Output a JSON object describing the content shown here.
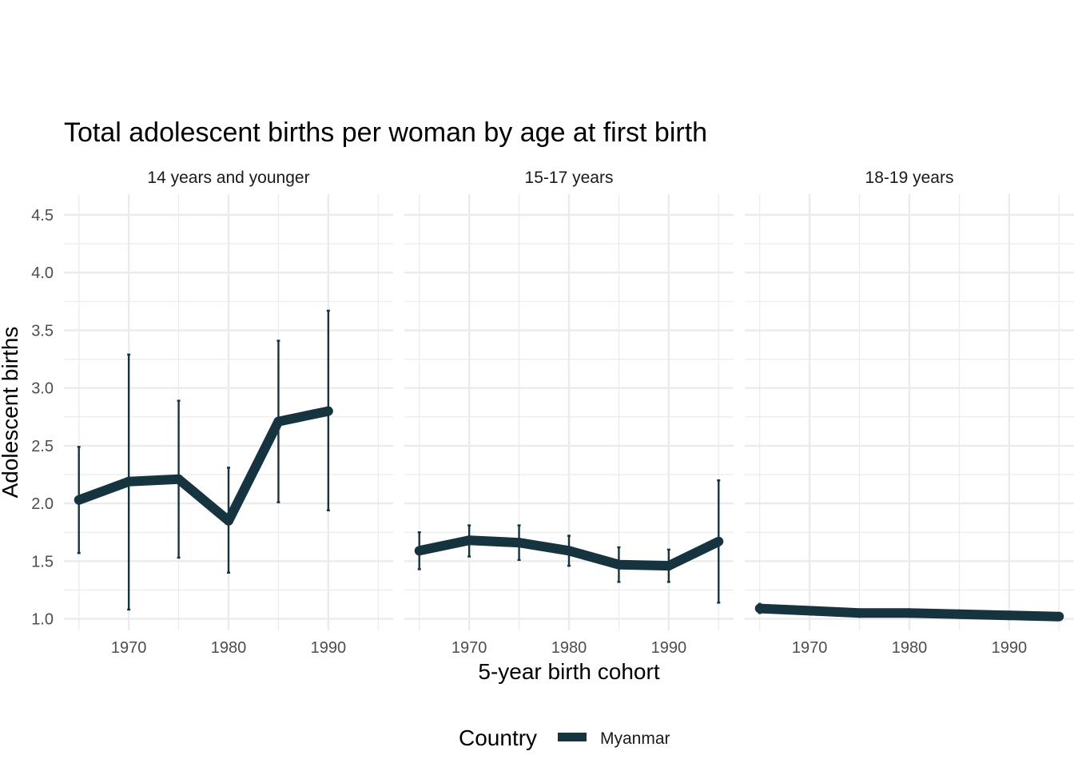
{
  "chart_data": {
    "type": "line",
    "title": "Total adolescent births per woman by age at first birth",
    "xlabel": "5-year birth cohort",
    "ylabel": "Adolescent births",
    "xlim": [
      1963.5,
      1996.5
    ],
    "ylim": [
      0.9,
      4.68
    ],
    "x_ticks": [
      1970,
      1980,
      1990
    ],
    "y_ticks": [
      1.0,
      1.5,
      2.0,
      2.5,
      3.0,
      3.5,
      4.0,
      4.5
    ],
    "y_tick_labels": [
      "1.0",
      "1.5",
      "2.0",
      "2.5",
      "3.0",
      "3.5",
      "4.0",
      "4.5"
    ],
    "grid": true,
    "legend": {
      "title": "Country",
      "position": "bottom",
      "entries": [
        "Myanmar"
      ]
    },
    "colors": {
      "series": "#16343f",
      "grid": "#ebebeb",
      "text": "#4d4d4d"
    },
    "panels": [
      {
        "label": "14 years and younger",
        "series": [
          {
            "name": "Myanmar",
            "x": [
              1965,
              1970,
              1975,
              1980,
              1985,
              1990
            ],
            "y": [
              2.03,
              2.19,
              2.21,
              1.85,
              2.71,
              2.8
            ],
            "lower": [
              1.57,
              1.08,
              1.53,
              1.4,
              2.01,
              1.94
            ],
            "upper": [
              2.49,
              3.29,
              2.89,
              2.31,
              3.41,
              3.67
            ]
          }
        ]
      },
      {
        "label": "15-17 years",
        "series": [
          {
            "name": "Myanmar",
            "x": [
              1965,
              1970,
              1975,
              1980,
              1985,
              1990,
              1995
            ],
            "y": [
              1.59,
              1.68,
              1.66,
              1.59,
              1.47,
              1.46,
              1.67
            ],
            "lower": [
              1.43,
              1.54,
              1.51,
              1.46,
              1.32,
              1.32,
              1.14
            ],
            "upper": [
              1.75,
              1.81,
              1.81,
              1.72,
              1.62,
              1.6,
              2.2
            ]
          }
        ]
      },
      {
        "label": "18-19 years",
        "series": [
          {
            "name": "Myanmar",
            "x": [
              1965,
              1970,
              1975,
              1980,
              1985,
              1990,
              1995
            ],
            "y": [
              1.09,
              1.07,
              1.05,
              1.05,
              1.04,
              1.03,
              1.02
            ],
            "lower": [
              1.05,
              1.05,
              1.03,
              1.03,
              1.02,
              1.01,
              1.0
            ],
            "upper": [
              1.13,
              1.09,
              1.07,
              1.07,
              1.06,
              1.05,
              1.04
            ]
          }
        ]
      }
    ]
  }
}
